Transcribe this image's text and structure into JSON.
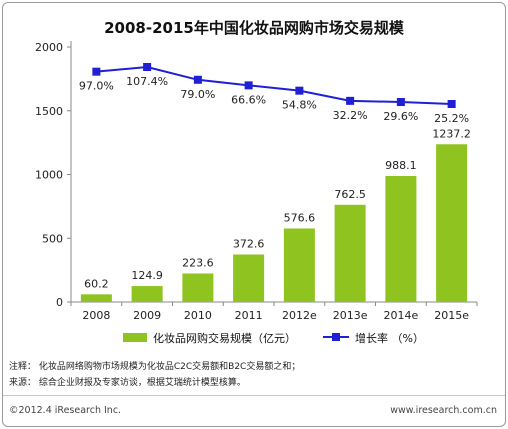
{
  "chart_data": {
    "type": "bar+line",
    "title": "2008-2015年中国化妆品网购市场交易规模",
    "categories": [
      "2008",
      "2009",
      "2010",
      "2011",
      "2012e",
      "2013e",
      "2014e",
      "2015e"
    ],
    "series": [
      {
        "name": "化妆品网购交易规模（亿元）",
        "kind": "bar",
        "values": [
          60.2,
          124.9,
          223.6,
          372.6,
          576.6,
          762.5,
          988.1,
          1237.2
        ],
        "labels": [
          "60.2",
          "124.9",
          "223.6",
          "372.6",
          "576.6",
          "762.5",
          "988.1",
          "1237.2"
        ],
        "color": "#8fc31f"
      },
      {
        "name": "增长率 （%）",
        "kind": "line",
        "values": [
          97.0,
          107.4,
          79.0,
          66.6,
          54.8,
          32.2,
          29.6,
          25.2
        ],
        "labels": [
          "97.0%",
          "107.4%",
          "79.0%",
          "66.6%",
          "54.8%",
          "32.2%",
          "29.6%",
          "25.2%"
        ],
        "color": "#1f1fd6"
      }
    ],
    "y_axis": {
      "min": 0,
      "max": 2000,
      "ticks": [
        "0",
        "500",
        "1000",
        "1500",
        "2000"
      ]
    },
    "grid": false,
    "legend_position": "bottom"
  },
  "notes": {
    "note1": "注释：  化妆品网络购物市场规模为化妆品C2C交易额和B2C交易额之和；",
    "note2": "来源：  综合企业财报及专家访谈，根据艾瑞统计模型核算。"
  },
  "footer": {
    "copyright": "©2012.4 iResearch Inc.",
    "website": "www.iresearch.com.cn"
  }
}
